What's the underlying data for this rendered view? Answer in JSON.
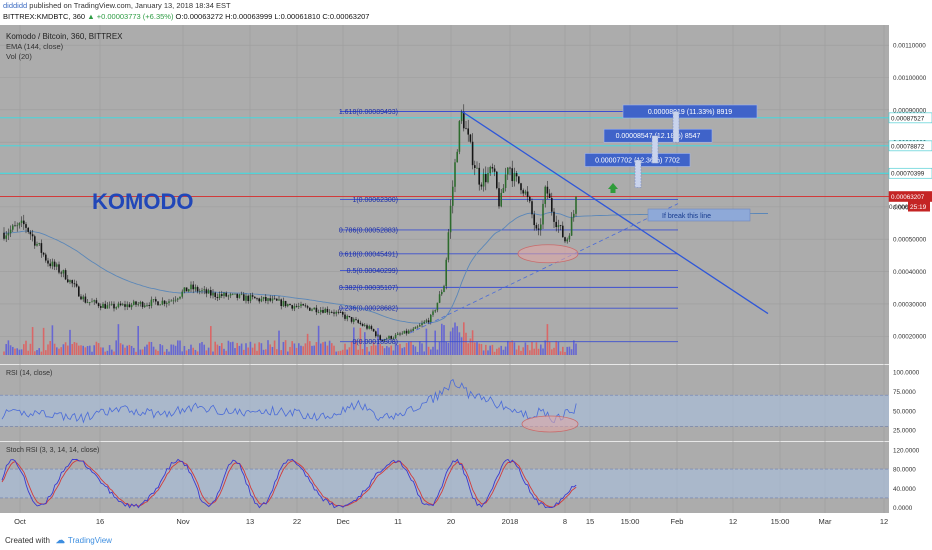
{
  "header": {
    "user": "diddidd",
    "published": "published on TradingView.com, January 13, 2018 18:34 EST",
    "symbol_line": "BITTREX:KMDBTC, 360",
    "change": "+0.00003773 (+6.35%)",
    "ohlc": "O:0.00063272 H:0.00063999 L:0.00061810 C:0.00063207"
  },
  "legend": {
    "title": "Komodo / Bitcoin, 360, BITTREX",
    "ema": "EMA (144, close)",
    "vol": "Vol (20)"
  },
  "watermark": "KOMODO",
  "colors": {
    "panel_bg": "#acacac",
    "fib_line": "#3b4fd0",
    "trend_line": "#2f57d8",
    "cyan_line": "#34e0e6",
    "red_line": "#d23a3a",
    "rsi_line": "#4a6bd8",
    "stoch_k": "#3a3ad0",
    "stoch_d": "#d23a3a",
    "band": "#aac3e6",
    "ema_line": "#5b87b8",
    "watermark": "#2147b8"
  },
  "chart_data": [
    {
      "type": "line",
      "name": "price",
      "title": "Komodo / Bitcoin, 360, BITTREX",
      "y_ticks": [
        "0.00110000",
        "0.00100000",
        "0.00090000",
        "0.00080000",
        "0.00070000",
        "0.00060000",
        "0.00050000",
        "0.00040000",
        "0.00030000",
        "0.00020000"
      ],
      "ylim": [
        0.000142,
        0.00115
      ],
      "fib_levels": [
        {
          "label": "1.618(0.00089493)",
          "value": 0.00089493
        },
        {
          "label": "1(0.00062300)",
          "value": 0.000623
        },
        {
          "label": "0.786(0.00052883)",
          "value": 0.00052883
        },
        {
          "label": "0.618(0.00045491)",
          "value": 0.00045491
        },
        {
          "label": "0.5(0.00040299)",
          "value": 0.00040299
        },
        {
          "label": "0.382(0.00035107)",
          "value": 0.00035107
        },
        {
          "label": "0.236(0.00028682)",
          "value": 0.00028682
        },
        {
          "label": "0(0.00018308)",
          "value": 0.00018308
        }
      ],
      "price_tags": [
        {
          "label": "0.00087527",
          "value": 0.00087527,
          "kind": "cyan"
        },
        {
          "label": "0.00078872",
          "value": 0.00078872,
          "kind": "cyan"
        },
        {
          "label": "0.00070399",
          "value": 0.00070399,
          "kind": "cyan"
        },
        {
          "label": "0.00063207",
          "value": 0.00063207,
          "kind": "red"
        }
      ],
      "last_price_partial": "0.0006",
      "countdown": "25:19",
      "targets": [
        {
          "label": "0.00008919 (11.33%) 8919"
        },
        {
          "label": "0.00008547 (12.18%) 8547"
        },
        {
          "label": "0.00007702 (12.36%) 7702"
        }
      ],
      "annotation": "If break this line",
      "x_ticks": [
        "Oct",
        "16",
        "Nov",
        "13",
        "22",
        "Dec",
        "11",
        "20",
        "2018",
        "8",
        "15",
        "15:00",
        "Feb",
        "12",
        "15:00",
        "Mar",
        "12"
      ],
      "key_points": [
        {
          "t": "Oct",
          "close": 0.00052
        },
        {
          "t": "mid-Oct",
          "close": 0.00031
        },
        {
          "t": "Nov",
          "close": 0.00034
        },
        {
          "t": "Dec",
          "close": 0.00027
        },
        {
          "t": "Dec 9",
          "close": 0.000185
        },
        {
          "t": "Dec 20",
          "close": 0.00064
        },
        {
          "t": "Dec 22",
          "close": 0.00089
        },
        {
          "t": "Jan 2",
          "close": 0.00074
        },
        {
          "t": "Jan 6",
          "close": 0.00049
        },
        {
          "t": "Jan 13",
          "close": 0.00063207
        }
      ]
    },
    {
      "type": "line",
      "name": "RSI (14, close)",
      "y_ticks": [
        "100.0000",
        "75.0000",
        "50.0000",
        "25.0000"
      ],
      "ylim": [
        15,
        105
      ],
      "band": [
        30,
        70
      ]
    },
    {
      "type": "line",
      "name": "Stoch RSI (3, 3, 14, 14, close)",
      "y_ticks": [
        "120.0000",
        "80.0000",
        "40.0000",
        "0.0000"
      ],
      "ylim": [
        -5,
        130
      ],
      "band": [
        20,
        80
      ]
    }
  ],
  "footer": {
    "created": "Created with",
    "brand": "TradingView"
  }
}
